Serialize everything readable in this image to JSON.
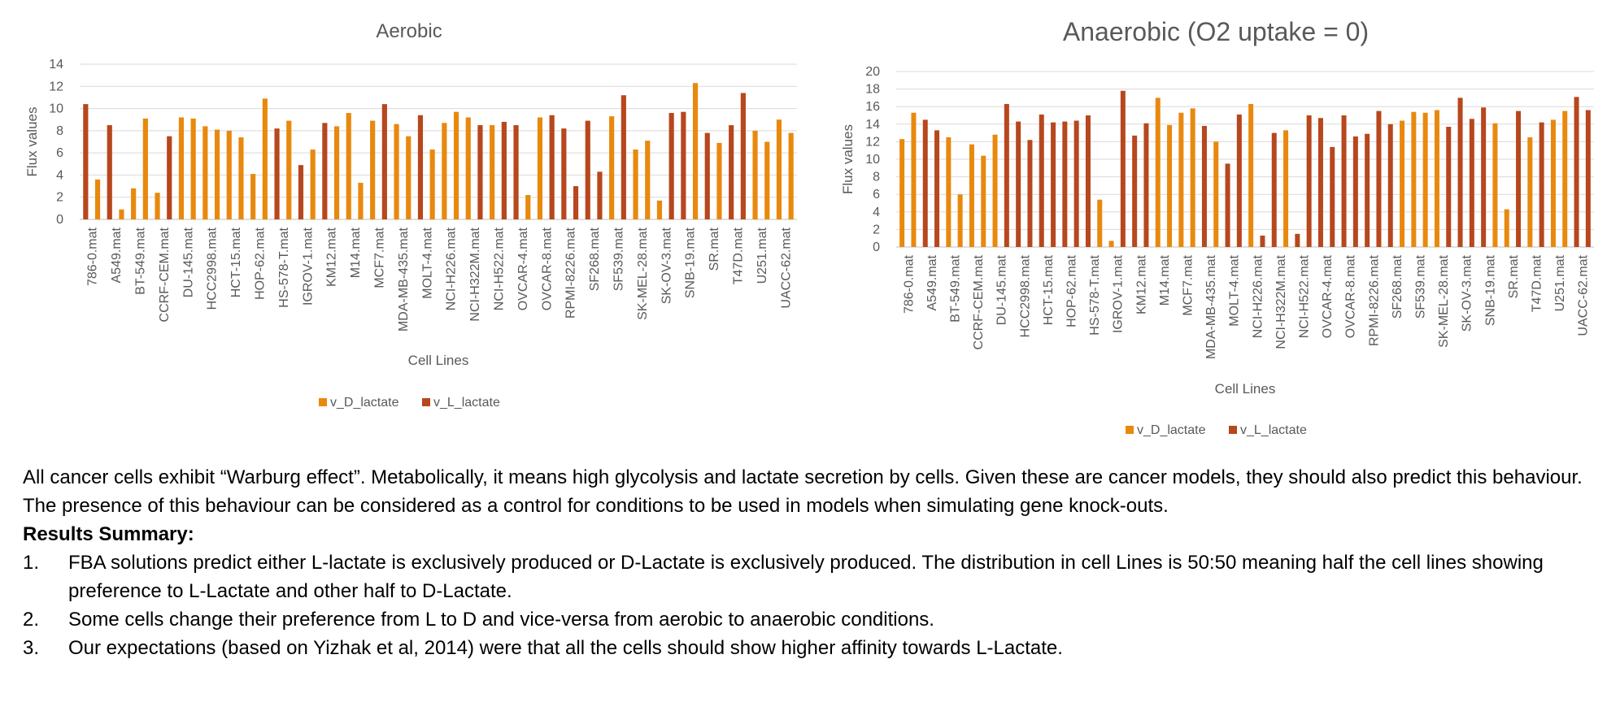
{
  "legend": {
    "d": "v_D_lactate",
    "l": "v_L_lactate"
  },
  "colors": {
    "d": "#e8890e",
    "l": "#b7471d",
    "grid": "#d9d9d9",
    "axis": "#bfbfbf"
  },
  "categories": [
    "786-0.mat",
    "A549.mat",
    "BT-549.mat",
    "CCRF-CEM.mat",
    "DU-145.mat",
    "HCC2998.mat",
    "HCT-15.mat",
    "HOP-62.mat",
    "HS-578-T.mat",
    "IGROV-1.mat",
    "KM12.mat",
    "M14.mat",
    "MCF7.mat",
    "MDA-MB-435.mat",
    "MOLT-4.mat",
    "NCI-H226.mat",
    "NCI-H322M.mat",
    "NCI-H522.mat",
    "OVCAR-4.mat",
    "OVCAR-8.mat",
    "RPMI-8226.mat",
    "SF268.mat",
    "SF539.mat",
    "SK-MEL-28.mat",
    "SK-OV-3.mat",
    "SNB-19.mat",
    "SR.mat",
    "T47D.mat",
    "U251.mat",
    "UACC-62.mat"
  ],
  "chart_data": [
    {
      "type": "bar",
      "title": "Aerobic",
      "xlabel": "Cell Lines",
      "ylabel": "Flux  values",
      "ylim": [
        0,
        14
      ],
      "yticks": [
        0,
        2,
        4,
        6,
        8,
        10,
        12,
        14
      ],
      "grid": true,
      "legend_position": "bottom",
      "bars": [
        {
          "series": "v_L_lactate",
          "value": 10.4
        },
        {
          "series": "v_D_lactate",
          "value": 3.6
        },
        {
          "series": "v_L_lactate",
          "value": 8.5
        },
        {
          "series": "v_D_lactate",
          "value": 0.9
        },
        {
          "series": "v_D_lactate",
          "value": 2.8
        },
        {
          "series": "v_D_lactate",
          "value": 9.1
        },
        {
          "series": "v_D_lactate",
          "value": 2.4
        },
        {
          "series": "v_L_lactate",
          "value": 7.5
        },
        {
          "series": "v_D_lactate",
          "value": 9.2
        },
        {
          "series": "v_D_lactate",
          "value": 9.1
        },
        {
          "series": "v_D_lactate",
          "value": 8.4
        },
        {
          "series": "v_D_lactate",
          "value": 8.1
        },
        {
          "series": "v_D_lactate",
          "value": 8.0
        },
        {
          "series": "v_D_lactate",
          "value": 7.4
        },
        {
          "series": "v_D_lactate",
          "value": 4.1
        },
        {
          "series": "v_D_lactate",
          "value": 10.9
        },
        {
          "series": "v_L_lactate",
          "value": 8.2
        },
        {
          "series": "v_D_lactate",
          "value": 8.9
        },
        {
          "series": "v_L_lactate",
          "value": 4.9
        },
        {
          "series": "v_D_lactate",
          "value": 6.3
        },
        {
          "series": "v_L_lactate",
          "value": 8.7
        },
        {
          "series": "v_D_lactate",
          "value": 8.4
        },
        {
          "series": "v_D_lactate",
          "value": 9.6
        },
        {
          "series": "v_D_lactate",
          "value": 3.3
        },
        {
          "series": "v_D_lactate",
          "value": 8.9
        },
        {
          "series": "v_L_lactate",
          "value": 10.4
        },
        {
          "series": "v_D_lactate",
          "value": 8.6
        },
        {
          "series": "v_D_lactate",
          "value": 7.5
        },
        {
          "series": "v_L_lactate",
          "value": 9.4
        },
        {
          "series": "v_D_lactate",
          "value": 6.3
        },
        {
          "series": "v_D_lactate",
          "value": 8.7
        },
        {
          "series": "v_D_lactate",
          "value": 9.7
        },
        {
          "series": "v_D_lactate",
          "value": 9.2
        },
        {
          "series": "v_L_lactate",
          "value": 8.5
        },
        {
          "series": "v_D_lactate",
          "value": 8.5
        },
        {
          "series": "v_L_lactate",
          "value": 8.8
        },
        {
          "series": "v_L_lactate",
          "value": 8.5
        },
        {
          "series": "v_D_lactate",
          "value": 2.2
        },
        {
          "series": "v_D_lactate",
          "value": 9.2
        },
        {
          "series": "v_L_lactate",
          "value": 9.4
        },
        {
          "series": "v_L_lactate",
          "value": 8.2
        },
        {
          "series": "v_L_lactate",
          "value": 3.0
        },
        {
          "series": "v_L_lactate",
          "value": 8.9
        },
        {
          "series": "v_L_lactate",
          "value": 4.3
        },
        {
          "series": "v_D_lactate",
          "value": 9.3
        },
        {
          "series": "v_L_lactate",
          "value": 11.2
        },
        {
          "series": "v_D_lactate",
          "value": 6.3
        },
        {
          "series": "v_D_lactate",
          "value": 7.1
        },
        {
          "series": "v_D_lactate",
          "value": 1.7
        },
        {
          "series": "v_L_lactate",
          "value": 9.6
        },
        {
          "series": "v_L_lactate",
          "value": 9.7
        },
        {
          "series": "v_D_lactate",
          "value": 12.3
        },
        {
          "series": "v_L_lactate",
          "value": 7.8
        },
        {
          "series": "v_D_lactate",
          "value": 6.9
        },
        {
          "series": "v_L_lactate",
          "value": 8.5
        },
        {
          "series": "v_L_lactate",
          "value": 11.4
        },
        {
          "series": "v_D_lactate",
          "value": 8.0
        },
        {
          "series": "v_D_lactate",
          "value": 7.0
        },
        {
          "series": "v_D_lactate",
          "value": 9.0
        },
        {
          "series": "v_D_lactate",
          "value": 7.8
        }
      ]
    },
    {
      "type": "bar",
      "title": "Anaerobic (O2 uptake = 0)",
      "xlabel": "Cell Lines",
      "ylabel": "Flux values",
      "ylim": [
        0,
        20
      ],
      "yticks": [
        0,
        2,
        4,
        6,
        8,
        10,
        12,
        14,
        16,
        18,
        20
      ],
      "grid": true,
      "legend_position": "bottom",
      "bars": [
        {
          "series": "v_D_lactate",
          "value": 12.3
        },
        {
          "series": "v_D_lactate",
          "value": 15.3
        },
        {
          "series": "v_L_lactate",
          "value": 14.5
        },
        {
          "series": "v_L_lactate",
          "value": 13.3
        },
        {
          "series": "v_D_lactate",
          "value": 12.5
        },
        {
          "series": "v_D_lactate",
          "value": 6.0
        },
        {
          "series": "v_D_lactate",
          "value": 11.7
        },
        {
          "series": "v_D_lactate",
          "value": 10.4
        },
        {
          "series": "v_D_lactate",
          "value": 12.8
        },
        {
          "series": "v_L_lactate",
          "value": 16.3
        },
        {
          "series": "v_L_lactate",
          "value": 14.3
        },
        {
          "series": "v_L_lactate",
          "value": 12.2
        },
        {
          "series": "v_L_lactate",
          "value": 15.1
        },
        {
          "series": "v_L_lactate",
          "value": 14.2
        },
        {
          "series": "v_L_lactate",
          "value": 14.3
        },
        {
          "series": "v_L_lactate",
          "value": 14.4
        },
        {
          "series": "v_L_lactate",
          "value": 15.0
        },
        {
          "series": "v_D_lactate",
          "value": 5.4
        },
        {
          "series": "v_D_lactate",
          "value": 0.7
        },
        {
          "series": "v_L_lactate",
          "value": 17.8
        },
        {
          "series": "v_L_lactate",
          "value": 12.7
        },
        {
          "series": "v_L_lactate",
          "value": 14.1
        },
        {
          "series": "v_D_lactate",
          "value": 17.0
        },
        {
          "series": "v_D_lactate",
          "value": 13.9
        },
        {
          "series": "v_D_lactate",
          "value": 15.3
        },
        {
          "series": "v_D_lactate",
          "value": 15.8
        },
        {
          "series": "v_L_lactate",
          "value": 13.8
        },
        {
          "series": "v_D_lactate",
          "value": 12.0
        },
        {
          "series": "v_L_lactate",
          "value": 9.5
        },
        {
          "series": "v_L_lactate",
          "value": 15.1
        },
        {
          "series": "v_D_lactate",
          "value": 16.3
        },
        {
          "series": "v_L_lactate",
          "value": 1.3
        },
        {
          "series": "v_L_lactate",
          "value": 13.0
        },
        {
          "series": "v_D_lactate",
          "value": 13.3
        },
        {
          "series": "v_L_lactate",
          "value": 1.5
        },
        {
          "series": "v_L_lactate",
          "value": 15.0
        },
        {
          "series": "v_L_lactate",
          "value": 14.7
        },
        {
          "series": "v_L_lactate",
          "value": 11.4
        },
        {
          "series": "v_L_lactate",
          "value": 15.0
        },
        {
          "series": "v_L_lactate",
          "value": 12.6
        },
        {
          "series": "v_L_lactate",
          "value": 12.9
        },
        {
          "series": "v_L_lactate",
          "value": 15.5
        },
        {
          "series": "v_L_lactate",
          "value": 14.0
        },
        {
          "series": "v_D_lactate",
          "value": 14.4
        },
        {
          "series": "v_D_lactate",
          "value": 15.4
        },
        {
          "series": "v_D_lactate",
          "value": 15.3
        },
        {
          "series": "v_D_lactate",
          "value": 15.6
        },
        {
          "series": "v_L_lactate",
          "value": 13.7
        },
        {
          "series": "v_L_lactate",
          "value": 17.0
        },
        {
          "series": "v_L_lactate",
          "value": 14.6
        },
        {
          "series": "v_L_lactate",
          "value": 15.9
        },
        {
          "series": "v_D_lactate",
          "value": 14.1
        },
        {
          "series": "v_D_lactate",
          "value": 4.3
        },
        {
          "series": "v_L_lactate",
          "value": 15.5
        },
        {
          "series": "v_D_lactate",
          "value": 12.5
        },
        {
          "series": "v_L_lactate",
          "value": 14.2
        },
        {
          "series": "v_D_lactate",
          "value": 14.5
        },
        {
          "series": "v_D_lactate",
          "value": 15.5
        },
        {
          "series": "v_L_lactate",
          "value": 17.1
        },
        {
          "series": "v_L_lactate",
          "value": 15.6
        }
      ]
    }
  ],
  "text": {
    "para1": "All cancer cells exhibit “Warburg effect”. Metabolically, it means high glycolysis and lactate secretion by cells. Given these are cancer models, they should also predict this behaviour. The presence of this behaviour can be considered as a control for conditions to be used in models when simulating gene knock-outs.",
    "heading": "Results Summary:",
    "items": [
      {
        "num": "1.",
        "text": "FBA solutions predict either L-lactate is exclusively produced or D-Lactate is exclusively produced. The distribution in cell Lines is 50:50 meaning half the cell lines showing preference to L-Lactate and other half to D-Lactate."
      },
      {
        "num": "2.",
        "text": "Some cells change their preference from L to D and vice-versa from aerobic to anaerobic conditions."
      },
      {
        "num": "3.",
        "text": "Our expectations (based on Yizhak et al, 2014) were that all the cells should show higher affinity towards L-Lactate."
      }
    ]
  }
}
